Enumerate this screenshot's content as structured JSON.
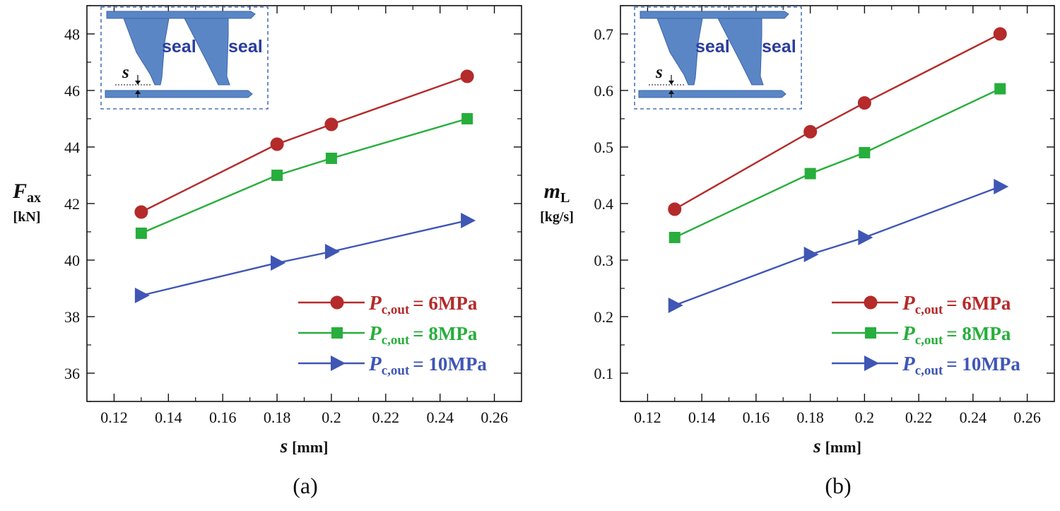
{
  "chart_data": [
    {
      "type": "line",
      "panel_label": "(a)",
      "xlabel": "s",
      "xunit": "[mm]",
      "ylabel_main": "F",
      "ylabel_sub": "ax",
      "yunit": "[kN]",
      "xlim": [
        0.11,
        0.27
      ],
      "ylim": [
        35,
        49
      ],
      "xticks": [
        "0.12",
        "0.14",
        "0.16",
        "0.18",
        "0.2",
        "0.22",
        "0.24",
        "0.26"
      ],
      "yticks": [
        "36",
        "38",
        "40",
        "42",
        "44",
        "46",
        "48"
      ],
      "x": [
        0.13,
        0.18,
        0.2,
        0.25
      ],
      "series": [
        {
          "name": "6MPa",
          "legend_main": "P",
          "legend_sub": "c,out",
          "legend_value": "= 6MPa",
          "color": "#b52a2a",
          "marker": "circle",
          "values": [
            41.7,
            44.1,
            44.8,
            46.5
          ]
        },
        {
          "name": "8MPa",
          "legend_main": "P",
          "legend_sub": "c,out",
          "legend_value": "= 8MPa",
          "color": "#27ae3c",
          "marker": "square",
          "values": [
            40.95,
            43.0,
            43.6,
            45.0
          ]
        },
        {
          "name": "10MPa",
          "legend_main": "P",
          "legend_sub": "c,out",
          "legend_value": "= 10MPa",
          "color": "#3f56b5",
          "marker": "triangle",
          "values": [
            38.75,
            39.9,
            40.3,
            41.4
          ]
        }
      ],
      "inset": {
        "label_s": "s",
        "seal_1": "seal",
        "seal_2": "seal"
      }
    },
    {
      "type": "line",
      "panel_label": "(b)",
      "xlabel": "s",
      "xunit": "[mm]",
      "ylabel_main": "m",
      "ylabel_sub": "L",
      "yunit": "[kg/s]",
      "xlim": [
        0.11,
        0.27
      ],
      "ylim": [
        0.05,
        0.75
      ],
      "xticks": [
        "0.12",
        "0.14",
        "0.16",
        "0.18",
        "0.2",
        "0.22",
        "0.24",
        "0.26"
      ],
      "yticks": [
        "0.1",
        "0.2",
        "0.3",
        "0.4",
        "0.5",
        "0.6",
        "0.7"
      ],
      "x": [
        0.13,
        0.18,
        0.2,
        0.25
      ],
      "series": [
        {
          "name": "6MPa",
          "legend_main": "P",
          "legend_sub": "c,out",
          "legend_value": "= 6MPa",
          "color": "#b52a2a",
          "marker": "circle",
          "values": [
            0.39,
            0.527,
            0.578,
            0.7
          ]
        },
        {
          "name": "8MPa",
          "legend_main": "P",
          "legend_sub": "c,out",
          "legend_value": "= 8MPa",
          "color": "#27ae3c",
          "marker": "square",
          "values": [
            0.34,
            0.453,
            0.49,
            0.603
          ]
        },
        {
          "name": "10MPa",
          "legend_main": "P",
          "legend_sub": "c,out",
          "legend_value": "= 10MPa",
          "color": "#3f56b5",
          "marker": "triangle",
          "values": [
            0.22,
            0.31,
            0.34,
            0.43
          ]
        }
      ],
      "inset": {
        "label_s": "s",
        "seal_1": "seal",
        "seal_2": "seal"
      }
    }
  ]
}
